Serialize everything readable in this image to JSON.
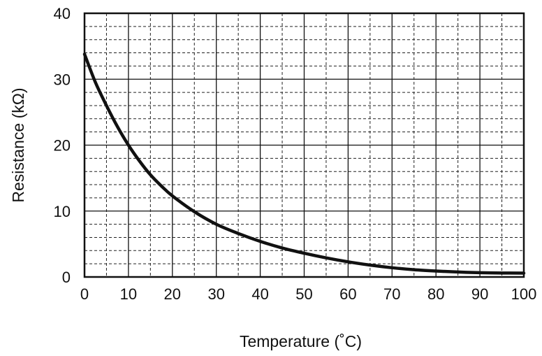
{
  "chart_data": {
    "type": "line",
    "title": "",
    "xlabel": "Temperature (˚C)",
    "ylabel": "Resistance (kΩ)",
    "xlim": [
      0,
      100
    ],
    "ylim": [
      0,
      40
    ],
    "x_ticks": [
      "0",
      "10",
      "20",
      "30",
      "40",
      "50",
      "60",
      "70",
      "80",
      "90",
      "100"
    ],
    "y_ticks": [
      "0",
      "10",
      "20",
      "30",
      "40"
    ],
    "grid": {
      "major": true,
      "minor_dashed": true,
      "x_minor_step": 5,
      "y_minor_step": 2
    },
    "legend": "none",
    "series": [
      {
        "color": "#111111",
        "x": [
          0,
          2.5,
          5,
          7.5,
          10,
          12.5,
          15,
          17.5,
          20,
          25,
          30,
          35,
          40,
          45,
          50,
          55,
          60,
          65,
          70,
          75,
          80,
          85,
          90,
          95,
          100
        ],
        "y": [
          33.8,
          29.5,
          26.0,
          22.8,
          20.0,
          17.6,
          15.5,
          13.8,
          12.3,
          9.9,
          8.0,
          6.6,
          5.4,
          4.4,
          3.6,
          2.9,
          2.3,
          1.8,
          1.4,
          1.1,
          0.9,
          0.75,
          0.65,
          0.6,
          0.58
        ]
      }
    ]
  }
}
